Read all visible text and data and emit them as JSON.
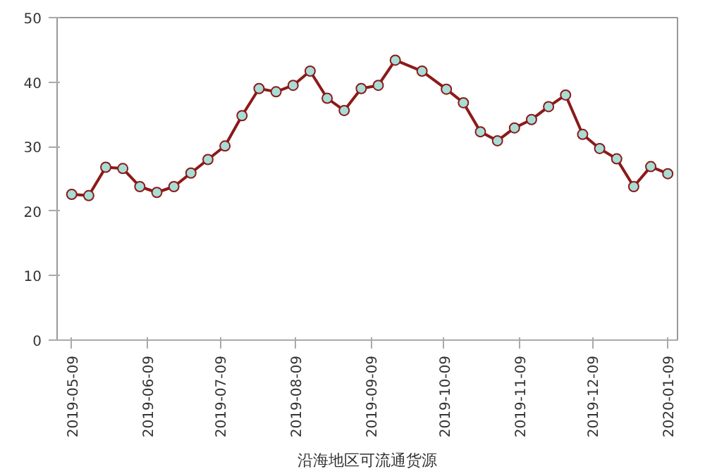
{
  "chart_data": {
    "type": "line",
    "title": "沿海地区可流通货源",
    "x": [
      "2019-05-09",
      "2019-05-16",
      "2019-05-23",
      "2019-05-30",
      "2019-06-06",
      "2019-06-13",
      "2019-06-20",
      "2019-06-27",
      "2019-07-04",
      "2019-07-11",
      "2019-07-18",
      "2019-07-25",
      "2019-08-01",
      "2019-08-08",
      "2019-08-15",
      "2019-08-22",
      "2019-08-29",
      "2019-09-05",
      "2019-09-12",
      "2019-09-19",
      "2019-09-30",
      "2019-10-10",
      "2019-10-17",
      "2019-10-24",
      "2019-10-31",
      "2019-11-07",
      "2019-11-14",
      "2019-11-21",
      "2019-11-28",
      "2019-12-05",
      "2019-12-12",
      "2019-12-19",
      "2019-12-26",
      "2020-01-02",
      "2020-01-09"
    ],
    "series": [
      {
        "color": "#8b1a1a",
        "values": [
          22.6,
          22.4,
          26.8,
          26.6,
          23.8,
          22.9,
          23.8,
          25.9,
          28.0,
          30.1,
          34.8,
          39.0,
          38.5,
          39.5,
          41.7,
          37.5,
          35.6,
          39.0,
          39.5,
          43.4,
          41.7,
          38.9,
          36.8,
          32.3,
          30.9,
          32.9,
          34.2,
          36.2,
          38.0,
          31.9,
          29.7,
          28.1,
          23.8,
          26.9,
          25.8
        ]
      }
    ],
    "xlim": [
      "2019-05-03",
      "2020-01-13"
    ],
    "xticks": [
      "2019-05-09",
      "2019-06-09",
      "2019-07-09",
      "2019-08-09",
      "2019-09-09",
      "2019-10-09",
      "2019-11-09",
      "2019-12-09",
      "2020-01-09"
    ],
    "ylim": [
      0,
      50
    ],
    "yticks": [
      0,
      10,
      20,
      30,
      40,
      50
    ],
    "grid": false,
    "marker": "circle",
    "line_style": "solid"
  }
}
